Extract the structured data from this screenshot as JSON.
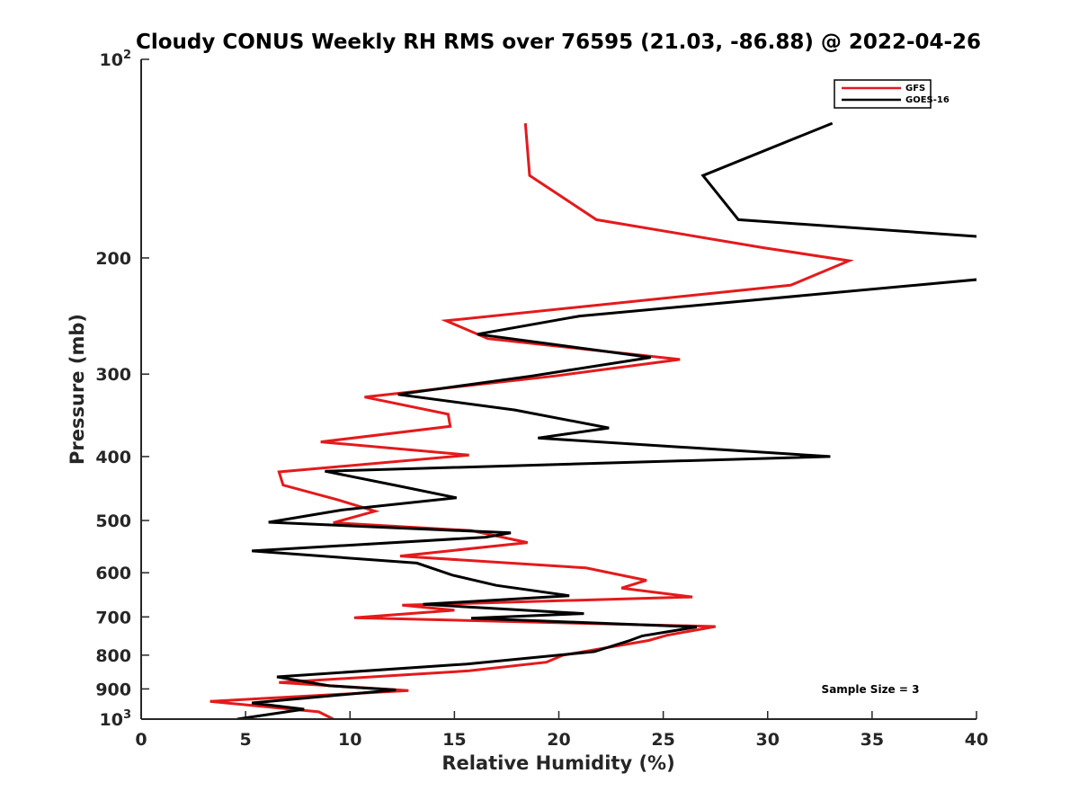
{
  "chart_data": {
    "type": "line",
    "title": "Cloudy CONUS Weekly RH RMS over 76595 (21.03, -86.88) @ 2022-04-26",
    "xlabel": "Relative Humidity (%)",
    "ylabel": "Pressure (mb)",
    "xlim": [
      0,
      40
    ],
    "ylim": [
      100,
      1000
    ],
    "yscale": "log",
    "y_reversed": true,
    "x_ticks": [
      "0",
      "5",
      "10",
      "15",
      "20",
      "25",
      "30",
      "35",
      "40"
    ],
    "y_ticks": [
      {
        "value": 100,
        "base": "10",
        "exp": "2"
      },
      {
        "value": 200,
        "label": "200"
      },
      {
        "value": 300,
        "label": "300"
      },
      {
        "value": 400,
        "label": "400"
      },
      {
        "value": 500,
        "label": "500"
      },
      {
        "value": 600,
        "label": "600"
      },
      {
        "value": 700,
        "label": "700"
      },
      {
        "value": 800,
        "label": "800"
      },
      {
        "value": 900,
        "label": "900"
      },
      {
        "value": 1000,
        "base": "10",
        "exp": "3"
      }
    ],
    "legend_position": "top-right",
    "annotation": "Sample Size = 3",
    "series": [
      {
        "name": "GFS",
        "color": "#e41a1c",
        "points": [
          [
            18.4,
            125
          ],
          [
            18.6,
            150
          ],
          [
            21.8,
            175
          ],
          [
            29.8,
            193
          ],
          [
            33.9,
            202
          ],
          [
            31.1,
            220
          ],
          [
            14.6,
            249
          ],
          [
            16.6,
            265
          ],
          [
            25.8,
            285
          ],
          [
            19.8,
            302
          ],
          [
            10.7,
            325
          ],
          [
            14.7,
            345
          ],
          [
            14.8,
            360
          ],
          [
            8.6,
            380
          ],
          [
            15.7,
            398
          ],
          [
            6.6,
            422
          ],
          [
            6.8,
            442
          ],
          [
            9.4,
            465
          ],
          [
            11.2,
            484
          ],
          [
            9.2,
            504
          ],
          [
            15.8,
            518
          ],
          [
            18.5,
            540
          ],
          [
            12.4,
            566
          ],
          [
            21.3,
            590
          ],
          [
            24.2,
            616
          ],
          [
            23.0,
            633
          ],
          [
            26.4,
            653
          ],
          [
            12.5,
            672
          ],
          [
            15.0,
            684
          ],
          [
            10.2,
            702
          ],
          [
            27.5,
            724
          ],
          [
            25.2,
            746
          ],
          [
            24.3,
            760
          ],
          [
            20.2,
            800
          ],
          [
            19.4,
            820
          ],
          [
            15.7,
            845
          ],
          [
            6.6,
            880
          ],
          [
            12.8,
            905
          ],
          [
            3.3,
            940
          ],
          [
            8.5,
            975
          ],
          [
            9.2,
            1000
          ]
        ]
      },
      {
        "name": "GOES-16",
        "color": "#000000",
        "points": [
          [
            33.1,
            125
          ],
          [
            26.9,
            150
          ],
          [
            28.6,
            175
          ],
          [
            40.5,
            186
          ],
          [
            40.5,
            215
          ],
          [
            21.0,
            245
          ],
          [
            16.1,
            261
          ],
          [
            24.4,
            283
          ],
          [
            18.7,
            302
          ],
          [
            12.3,
            322
          ],
          [
            17.9,
            340
          ],
          [
            22.4,
            362
          ],
          [
            19.0,
            375
          ],
          [
            33.0,
            400
          ],
          [
            8.8,
            421
          ],
          [
            12.3,
            443
          ],
          [
            15.1,
            462
          ],
          [
            9.6,
            482
          ],
          [
            6.1,
            503
          ],
          [
            17.7,
            522
          ],
          [
            16.5,
            530
          ],
          [
            5.3,
            556
          ],
          [
            13.2,
            580
          ],
          [
            14.9,
            605
          ],
          [
            17.0,
            627
          ],
          [
            20.5,
            650
          ],
          [
            13.5,
            670
          ],
          [
            21.2,
            692
          ],
          [
            15.8,
            703
          ],
          [
            26.6,
            725
          ],
          [
            24.0,
            748
          ],
          [
            23.4,
            760
          ],
          [
            21.7,
            790
          ],
          [
            15.6,
            825
          ],
          [
            6.5,
            863
          ],
          [
            9.0,
            890
          ],
          [
            12.2,
            903
          ],
          [
            5.3,
            945
          ],
          [
            7.8,
            966
          ],
          [
            4.6,
            1000
          ]
        ]
      }
    ]
  }
}
